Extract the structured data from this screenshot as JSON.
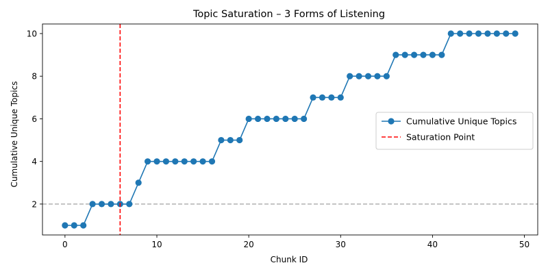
{
  "chart_data": {
    "type": "line",
    "title": "Topic Saturation – 3 Forms of Listening",
    "xlabel": "Chunk ID",
    "ylabel": "Cumulative Unique Topics",
    "xlim": [
      -2.45,
      51.45
    ],
    "ylim": [
      0.55,
      10.45
    ],
    "xticks": [
      0,
      10,
      20,
      30,
      40,
      50
    ],
    "yticks": [
      2,
      4,
      6,
      8,
      10
    ],
    "grid": false,
    "legend_position": "center-right",
    "series": [
      {
        "name": "Cumulative Unique Topics",
        "color": "#1f77b4",
        "marker": "circle",
        "x": [
          0,
          1,
          2,
          3,
          4,
          5,
          6,
          7,
          8,
          9,
          10,
          11,
          12,
          13,
          14,
          15,
          16,
          17,
          18,
          19,
          20,
          21,
          22,
          23,
          24,
          25,
          26,
          27,
          28,
          29,
          30,
          31,
          32,
          33,
          34,
          35,
          36,
          37,
          38,
          39,
          40,
          41,
          42,
          43,
          44,
          45,
          46,
          47,
          48,
          49
        ],
        "values": [
          1,
          1,
          1,
          2,
          2,
          2,
          2,
          2,
          3,
          4,
          4,
          4,
          4,
          4,
          4,
          4,
          4,
          5,
          5,
          5,
          6,
          6,
          6,
          6,
          6,
          6,
          6,
          7,
          7,
          7,
          7,
          8,
          8,
          8,
          8,
          8,
          9,
          9,
          9,
          9,
          9,
          9,
          10,
          10,
          10,
          10,
          10,
          10,
          10,
          10
        ]
      }
    ],
    "annotations": [
      {
        "name": "Saturation Point",
        "type": "vline",
        "x": 6,
        "color": "#ff0000",
        "style": "dashed"
      },
      {
        "type": "hline",
        "y": 2,
        "color": "#b0b0b0",
        "style": "dashed"
      }
    ]
  }
}
